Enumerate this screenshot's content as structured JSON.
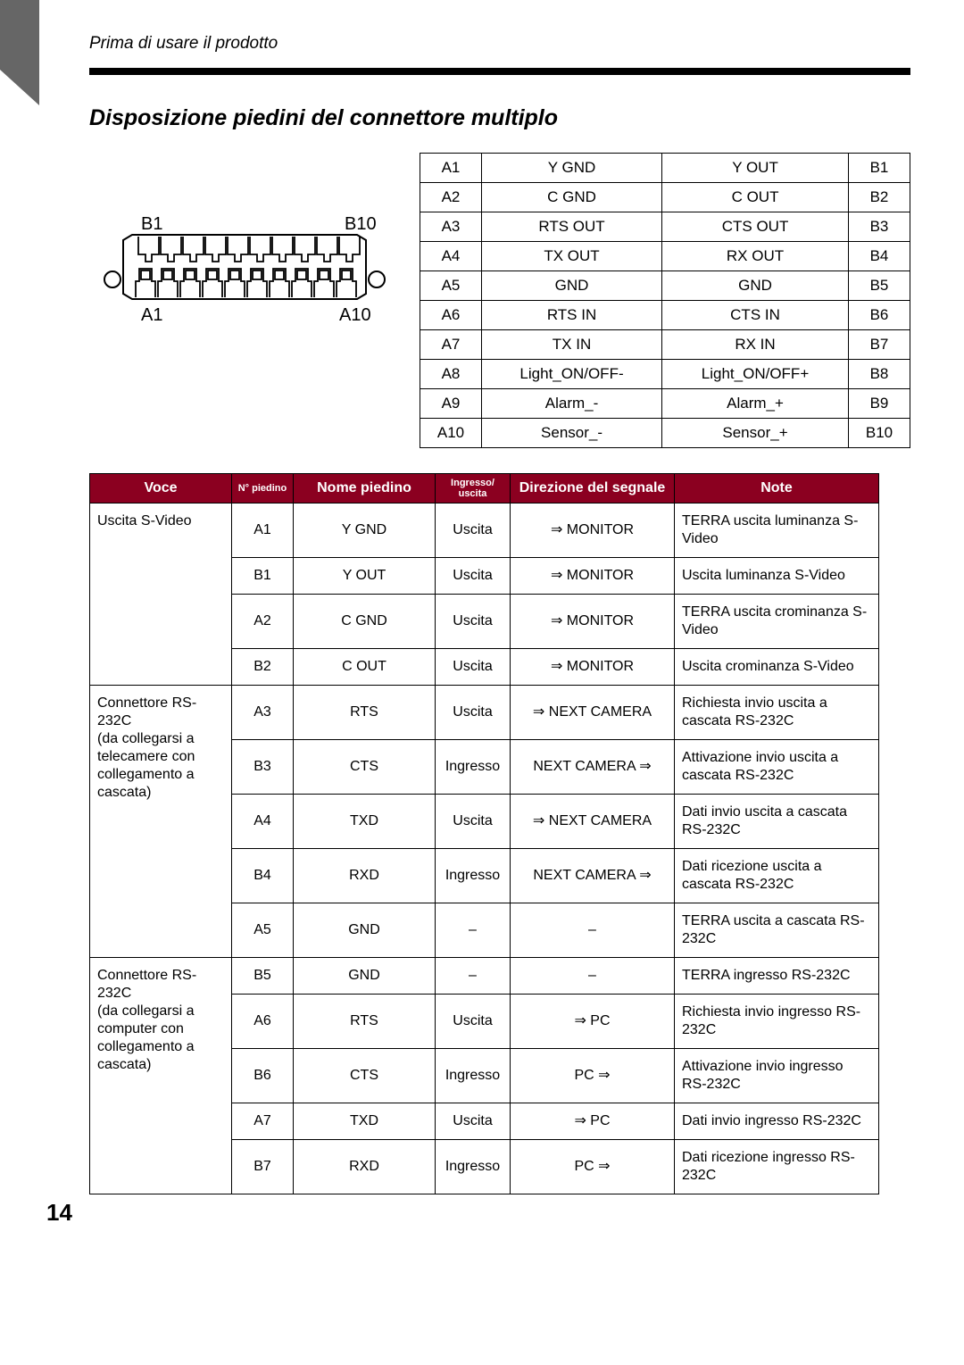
{
  "header": "Prima di usare il prodotto",
  "title": "Disposizione piedini del connettore multiplo",
  "page_number": "14",
  "connector_labels": {
    "top_left": "B1",
    "top_right": "B10",
    "bottom_left": "A1",
    "bottom_right": "A10"
  },
  "pinout": {
    "rows": [
      {
        "a": "A1",
        "a_name": "Y GND",
        "b_name": "Y OUT",
        "b": "B1"
      },
      {
        "a": "A2",
        "a_name": "C GND",
        "b_name": "C OUT",
        "b": "B2"
      },
      {
        "a": "A3",
        "a_name": "RTS OUT",
        "b_name": "CTS OUT",
        "b": "B3"
      },
      {
        "a": "A4",
        "a_name": "TX OUT",
        "b_name": "RX OUT",
        "b": "B4"
      },
      {
        "a": "A5",
        "a_name": "GND",
        "b_name": "GND",
        "b": "B5"
      },
      {
        "a": "A6",
        "a_name": "RTS IN",
        "b_name": "CTS IN",
        "b": "B6"
      },
      {
        "a": "A7",
        "a_name": "TX IN",
        "b_name": "RX IN",
        "b": "B7"
      },
      {
        "a": "A8",
        "a_name": "Light_ON/OFF-",
        "b_name": "Light_ON/OFF+",
        "b": "B8"
      },
      {
        "a": "A9",
        "a_name": "Alarm_-",
        "b_name": "Alarm_+",
        "b": "B9"
      },
      {
        "a": "A10",
        "a_name": "Sensor_-",
        "b_name": "Sensor_+",
        "b": "B10"
      }
    ]
  },
  "detail_headers": {
    "voce": "Voce",
    "pin": "N°\npiedino",
    "nome": "Nome piedino",
    "io": "Ingresso/\nuscita",
    "dir": "Direzione del segnale",
    "note": "Note"
  },
  "groups": [
    {
      "voce": "Uscita S-Video",
      "rows": [
        {
          "pin": "A1",
          "nome": "Y GND",
          "io": "Uscita",
          "dir": "⇒ MONITOR",
          "note": "TERRA uscita luminanza S-Video"
        },
        {
          "pin": "B1",
          "nome": "Y OUT",
          "io": "Uscita",
          "dir": "⇒ MONITOR",
          "note": "Uscita luminanza S-Video"
        },
        {
          "pin": "A2",
          "nome": "C GND",
          "io": "Uscita",
          "dir": "⇒ MONITOR",
          "note": "TERRA uscita crominanza S-Video"
        },
        {
          "pin": "B2",
          "nome": "C OUT",
          "io": "Uscita",
          "dir": "⇒ MONITOR",
          "note": "Uscita crominanza S-Video"
        }
      ]
    },
    {
      "voce": "Connettore RS-232C\n(da collegarsi a telecamere con collegamento a cascata)",
      "rows": [
        {
          "pin": "A3",
          "nome": "RTS",
          "io": "Uscita",
          "dir": "⇒ NEXT CAMERA",
          "note": "Richiesta invio uscita a cascata RS-232C"
        },
        {
          "pin": "B3",
          "nome": "CTS",
          "io": "Ingresso",
          "dir": "NEXT CAMERA ⇒",
          "note": "Attivazione invio uscita a cascata RS-232C"
        },
        {
          "pin": "A4",
          "nome": "TXD",
          "io": "Uscita",
          "dir": "⇒ NEXT CAMERA",
          "note": "Dati invio uscita a cascata RS-232C"
        },
        {
          "pin": "B4",
          "nome": "RXD",
          "io": "Ingresso",
          "dir": "NEXT CAMERA ⇒",
          "note": "Dati ricezione uscita a cascata RS-232C"
        },
        {
          "pin": "A5",
          "nome": "GND",
          "io": "–",
          "dir": "–",
          "note": "TERRA uscita a cascata RS-232C"
        }
      ]
    },
    {
      "voce": "Connettore RS-232C\n(da collegarsi a computer con collegamento a cascata)",
      "rows": [
        {
          "pin": "B5",
          "nome": "GND",
          "io": "–",
          "dir": "–",
          "note": "TERRA ingresso RS-232C"
        },
        {
          "pin": "A6",
          "nome": "RTS",
          "io": "Uscita",
          "dir": "⇒ PC",
          "note": "Richiesta invio ingresso RS-232C"
        },
        {
          "pin": "B6",
          "nome": "CTS",
          "io": "Ingresso",
          "dir": "PC ⇒",
          "note": "Attivazione invio ingresso RS-232C"
        },
        {
          "pin": "A7",
          "nome": "TXD",
          "io": "Uscita",
          "dir": "⇒ PC",
          "note": "Dati invio ingresso RS-232C"
        },
        {
          "pin": "B7",
          "nome": "RXD",
          "io": "Ingresso",
          "dir": "PC ⇒",
          "note": "Dati ricezione ingresso RS-232C"
        }
      ]
    }
  ],
  "style": {
    "header_bg": "#8b0020",
    "header_fg": "#ffffff",
    "border_color": "#000000",
    "body_font": "Arial",
    "title_fontsize": 25,
    "header_fontsize": 19,
    "table_fontsize": 16,
    "pinout_fontsize": 17
  }
}
